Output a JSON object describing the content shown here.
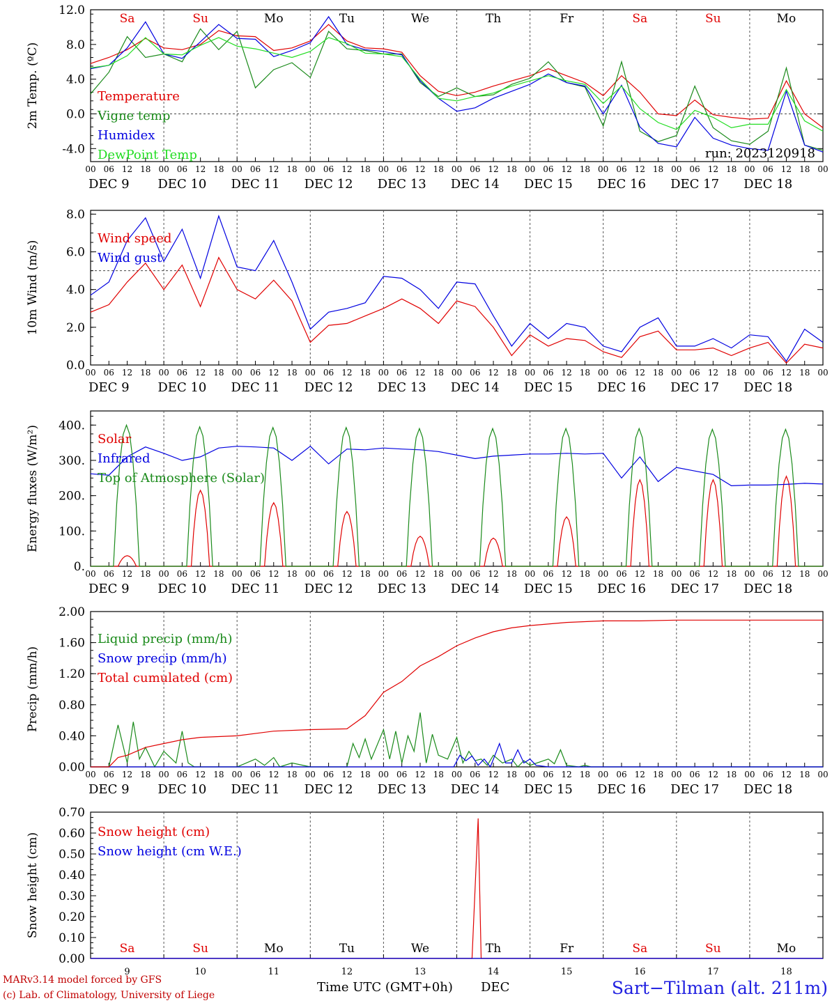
{
  "colors": {
    "red": "#e00000",
    "green": "#1a8a1a",
    "blue": "#0000e0",
    "lightgreen": "#22dd22",
    "black": "#000000"
  },
  "days": [
    "DEC  9",
    "DEC 10",
    "DEC 11",
    "DEC 12",
    "DEC 13",
    "DEC 14",
    "DEC 15",
    "DEC 16",
    "DEC 17",
    "DEC 18"
  ],
  "dow": [
    "Sa",
    "Su",
    "Mo",
    "Tu",
    "We",
    "Th",
    "Fr",
    "Sa",
    "Su",
    "Mo"
  ],
  "dow_colors": [
    "red",
    "red",
    "black",
    "black",
    "black",
    "black",
    "black",
    "red",
    "red",
    "black"
  ],
  "hour_ticks": [
    "00",
    "06",
    "12",
    "18"
  ],
  "day_numbers": [
    "9",
    "10",
    "11",
    "12",
    "13",
    "14",
    "15",
    "16",
    "17",
    "18"
  ],
  "run_label": "run: 2023120918",
  "footer": {
    "model": "MARv3.14 model forced by GFS",
    "copyright": "(c) Lab. of Climatology, University of Liege",
    "xlabel": "Time UTC (GMT+0h)",
    "month": "DEC",
    "station": "Sart−Tilman (alt. 211m)"
  },
  "chart_data": [
    {
      "type": "line",
      "ylabel": "2m Temp. (ºC)",
      "ylim": [
        -5.5,
        12.0
      ],
      "yticks": [
        "12.0",
        "8.0",
        "4.0",
        "0.0",
        "-4.0"
      ],
      "ytick_values": [
        12,
        8,
        4,
        0,
        -4
      ],
      "hline": 0,
      "x_hours": [
        0,
        6,
        12,
        18,
        24,
        30,
        36,
        42,
        48,
        54,
        60,
        66,
        72,
        78,
        84,
        90,
        96,
        102,
        108,
        114,
        120,
        126,
        132,
        138,
        144,
        150,
        156,
        162,
        168,
        174,
        180,
        186,
        192,
        198,
        204,
        210,
        216,
        222,
        228,
        234,
        240
      ],
      "series": [
        {
          "name": "Temperature",
          "color": "red",
          "values": [
            5.8,
            6.5,
            7.4,
            8.7,
            7.6,
            7.4,
            8.0,
            9.6,
            9.0,
            8.9,
            7.3,
            7.6,
            8.4,
            10.3,
            8.4,
            7.6,
            7.5,
            7.1,
            4.4,
            2.6,
            2.1,
            2.5,
            3.2,
            3.8,
            4.4,
            5.2,
            4.4,
            3.6,
            2.1,
            4.4,
            2.5,
            0.0,
            -0.2,
            1.6,
            -0.1,
            -0.4,
            -0.6,
            -0.5,
            3.8,
            0.0,
            -1.6
          ]
        },
        {
          "name": "Vigne temp",
          "color": "green",
          "values": [
            2.3,
            4.8,
            8.9,
            6.5,
            6.9,
            6.0,
            9.8,
            7.4,
            9.5,
            3.0,
            5.1,
            5.9,
            4.2,
            9.5,
            7.5,
            7.3,
            6.9,
            6.9,
            3.6,
            2.0,
            3.0,
            2.0,
            2.2,
            3.4,
            4.1,
            6.0,
            3.6,
            3.1,
            -1.4,
            6.0,
            -2.0,
            -3.2,
            -2.5,
            3.2,
            -1.6,
            -3.1,
            -3.5,
            -2.0,
            5.3,
            -3.6,
            -4.2
          ]
        },
        {
          "name": "Humidex",
          "color": "blue",
          "values": [
            5.2,
            5.6,
            7.6,
            10.6,
            6.9,
            6.4,
            8.3,
            10.3,
            8.7,
            8.6,
            6.6,
            7.3,
            8.2,
            11.2,
            8.0,
            7.4,
            7.2,
            6.8,
            3.8,
            1.8,
            0.3,
            0.7,
            1.8,
            2.6,
            3.4,
            4.6,
            3.6,
            3.2,
            0.0,
            3.3,
            -1.5,
            -3.4,
            -3.8,
            -0.4,
            -2.8,
            -3.6,
            -4.0,
            -4.2,
            2.6,
            -3.6,
            -4.4
          ]
        },
        {
          "name": "DewPoint Temp",
          "color": "lightgreen",
          "values": [
            5.3,
            5.6,
            6.7,
            8.8,
            6.9,
            6.8,
            7.9,
            8.8,
            7.8,
            7.5,
            7.0,
            6.5,
            7.2,
            8.8,
            8.1,
            7.0,
            6.9,
            6.6,
            4.0,
            1.8,
            1.5,
            2.0,
            2.4,
            3.2,
            3.8,
            4.4,
            3.8,
            3.4,
            1.2,
            3.2,
            0.6,
            -1.0,
            -1.8,
            0.4,
            -0.4,
            -1.6,
            -1.2,
            -1.2,
            2.8,
            -0.8,
            -2.0
          ]
        }
      ]
    },
    {
      "type": "line",
      "ylabel": "10m Wind (m/s)",
      "ylim": [
        0,
        8.2
      ],
      "yticks": [
        "8.0",
        "6.0",
        "4.0",
        "2.0",
        "0.0"
      ],
      "ytick_values": [
        8,
        6,
        4,
        2,
        0
      ],
      "hline": 5,
      "x_hours": [
        0,
        6,
        12,
        18,
        24,
        30,
        36,
        42,
        48,
        54,
        60,
        66,
        72,
        78,
        84,
        90,
        96,
        102,
        108,
        114,
        120,
        126,
        132,
        138,
        144,
        150,
        156,
        162,
        168,
        174,
        180,
        186,
        192,
        198,
        204,
        210,
        216,
        222,
        228,
        234,
        240
      ],
      "series": [
        {
          "name": "Wind speed",
          "color": "red",
          "values": [
            2.8,
            3.2,
            4.4,
            5.4,
            4.0,
            5.3,
            3.1,
            5.7,
            4.0,
            3.5,
            4.5,
            3.4,
            1.2,
            2.1,
            2.2,
            2.6,
            3.0,
            3.5,
            3.0,
            2.2,
            3.4,
            3.1,
            2.0,
            0.5,
            1.6,
            1.0,
            1.4,
            1.3,
            0.7,
            0.4,
            1.5,
            1.8,
            0.8,
            0.8,
            0.9,
            0.5,
            0.9,
            1.2,
            0.1,
            1.1,
            0.9
          ]
        },
        {
          "name": "Wind gust",
          "color": "blue",
          "values": [
            3.7,
            4.4,
            6.6,
            7.8,
            5.5,
            7.2,
            4.6,
            7.9,
            5.2,
            5.0,
            6.6,
            4.4,
            1.9,
            2.8,
            3.0,
            3.3,
            4.7,
            4.6,
            4.0,
            3.0,
            4.4,
            4.3,
            2.6,
            1.0,
            2.2,
            1.4,
            2.2,
            2.0,
            1.0,
            0.7,
            2.0,
            2.5,
            1.0,
            1.0,
            1.4,
            0.9,
            1.6,
            1.5,
            0.2,
            1.9,
            1.2
          ]
        }
      ]
    },
    {
      "type": "line",
      "ylabel": "Energy fluxes (W/m²)",
      "ylim": [
        0,
        440
      ],
      "yticks": [
        "400.",
        "300.",
        "200.",
        "100.",
        "0."
      ],
      "ytick_values": [
        400,
        300,
        200,
        100,
        0
      ],
      "series": [
        {
          "name": "Solar",
          "color": "red",
          "peaks": [
            30,
            215,
            180,
            155,
            85,
            80,
            140,
            245,
            245,
            255
          ]
        },
        {
          "name": "Infrared",
          "color": "blue",
          "x_hours": [
            0,
            6,
            12,
            18,
            24,
            30,
            36,
            42,
            48,
            54,
            60,
            66,
            72,
            78,
            84,
            90,
            96,
            102,
            108,
            114,
            120,
            126,
            132,
            138,
            144,
            150,
            156,
            162,
            168,
            174,
            180,
            186,
            192,
            198,
            204,
            210,
            216,
            222,
            228,
            234,
            240
          ],
          "values": [
            262,
            258,
            310,
            338,
            320,
            300,
            310,
            335,
            340,
            338,
            335,
            300,
            340,
            290,
            332,
            330,
            335,
            332,
            330,
            325,
            315,
            305,
            312,
            315,
            318,
            318,
            320,
            318,
            320,
            250,
            310,
            240,
            280,
            270,
            260,
            228,
            230,
            230,
            232,
            235,
            233
          ]
        },
        {
          "name": "Top of Atmosphere (Solar)",
          "color": "green",
          "peaks": [
            400,
            395,
            393,
            393,
            390,
            390,
            390,
            390,
            388,
            388
          ]
        }
      ]
    },
    {
      "type": "line",
      "ylabel": "Precip (mm/h)",
      "ylim": [
        0,
        2.0
      ],
      "yticks": [
        "2.00",
        "1.60",
        "1.20",
        "0.80",
        "0.40",
        "0.00"
      ],
      "ytick_values": [
        2.0,
        1.6,
        1.2,
        0.8,
        0.4,
        0.0
      ],
      "series": [
        {
          "name": "Liquid precip (mm/h)",
          "color": "green",
          "x_hours": [
            0,
            6,
            9,
            12,
            14,
            16,
            18,
            21,
            24,
            28,
            30,
            32,
            34,
            36,
            40,
            48,
            54,
            57,
            60,
            62,
            66,
            72,
            84,
            86,
            88,
            90,
            92,
            96,
            98,
            100,
            102,
            104,
            106,
            108,
            110,
            112,
            114,
            117,
            120,
            122,
            124,
            126,
            128,
            130,
            132,
            135,
            138,
            140,
            142,
            144,
            150,
            152,
            154,
            156,
            160,
            162,
            164,
            168,
            240
          ],
          "values": [
            0,
            0,
            0.54,
            0.05,
            0.58,
            0.1,
            0.25,
            0.0,
            0.2,
            0.05,
            0.46,
            0.05,
            0,
            0,
            0,
            0,
            0.1,
            0.02,
            0.12,
            0,
            0.05,
            0,
            0,
            0.3,
            0.12,
            0.36,
            0.1,
            0.48,
            0.1,
            0.46,
            0.05,
            0.4,
            0.2,
            0.7,
            0.05,
            0.42,
            0.15,
            0.1,
            0.38,
            0.05,
            0.2,
            0.08,
            0.1,
            0.02,
            0.15,
            0.05,
            0.1,
            0.0,
            0.08,
            0.02,
            0.1,
            0.04,
            0.22,
            0.02,
            0,
            0.02,
            0,
            0,
            0
          ]
        },
        {
          "name": "Snow precip (mm/h)",
          "color": "blue",
          "x_hours": [
            0,
            119,
            121,
            123,
            125,
            127,
            129,
            131,
            134,
            136,
            138,
            140,
            142,
            144,
            146,
            150,
            240
          ],
          "values": [
            0,
            0,
            0.15,
            0.08,
            0.14,
            0.02,
            0.1,
            0.0,
            0.3,
            0.05,
            0.05,
            0.22,
            0.05,
            0.1,
            0.02,
            0,
            0
          ]
        },
        {
          "name": "Total cumulated (cm)",
          "color": "red",
          "x_hours": [
            0,
            6,
            9,
            12,
            18,
            24,
            30,
            36,
            48,
            60,
            72,
            84,
            90,
            96,
            102,
            108,
            114,
            120,
            126,
            132,
            138,
            144,
            156,
            168,
            180,
            192,
            204,
            216,
            240
          ],
          "values": [
            0,
            0,
            0.12,
            0.15,
            0.25,
            0.3,
            0.35,
            0.38,
            0.4,
            0.46,
            0.48,
            0.49,
            0.66,
            0.96,
            1.1,
            1.3,
            1.42,
            1.56,
            1.66,
            1.74,
            1.79,
            1.82,
            1.86,
            1.88,
            1.88,
            1.89,
            1.89,
            1.89,
            1.89
          ]
        }
      ]
    },
    {
      "type": "line",
      "ylabel": "Snow height (cm)",
      "ylim": [
        0,
        0.7
      ],
      "yticks": [
        "0.70",
        "0.60",
        "0.50",
        "0.40",
        "0.30",
        "0.20",
        "0.10",
        "0.00"
      ],
      "ytick_values": [
        0.7,
        0.6,
        0.5,
        0.4,
        0.3,
        0.2,
        0.1,
        0.0
      ],
      "series": [
        {
          "name": "Snow height (cm)",
          "color": "red",
          "x_hours": [
            0,
            125,
            127,
            128,
            240
          ],
          "values": [
            0,
            0,
            0.67,
            0,
            0
          ]
        },
        {
          "name": "Snow height (cm W.E.)",
          "color": "blue",
          "x_hours": [
            0,
            240
          ],
          "values": [
            0,
            0
          ]
        }
      ]
    }
  ]
}
